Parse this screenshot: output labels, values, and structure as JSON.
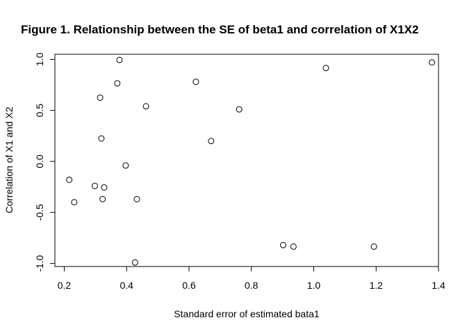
{
  "chart_data": {
    "type": "scatter",
    "title": "Figure 1. Relationship between the SE of beta1 and correlation of X1X2",
    "xlabel": "Standard error of estimated bata1",
    "ylabel": "Correlation of X1 and X2",
    "xlim": [
      0.17,
      1.4
    ],
    "ylim": [
      -1.03,
      1.05
    ],
    "x_ticks": [
      0.2,
      0.4,
      0.6,
      0.8,
      1.0,
      1.2,
      1.4
    ],
    "x_tick_labels": [
      "0.2",
      "0.4",
      "0.6",
      "0.8",
      "1.0",
      "1.2",
      "1.4"
    ],
    "y_ticks": [
      -1.0,
      -0.5,
      0.0,
      0.5,
      1.0
    ],
    "y_tick_labels": [
      "-1.0",
      "-0.5",
      "0.0",
      "0.5",
      "1.0"
    ],
    "grid": false,
    "legend": "none",
    "marker": "open-circle",
    "color": "#000000",
    "points": [
      {
        "x": 0.216,
        "y": -0.18
      },
      {
        "x": 0.232,
        "y": -0.4
      },
      {
        "x": 0.298,
        "y": -0.24
      },
      {
        "x": 0.315,
        "y": 0.625
      },
      {
        "x": 0.319,
        "y": 0.225
      },
      {
        "x": 0.323,
        "y": -0.37
      },
      {
        "x": 0.328,
        "y": -0.255
      },
      {
        "x": 0.37,
        "y": 0.765
      },
      {
        "x": 0.377,
        "y": 0.995
      },
      {
        "x": 0.397,
        "y": -0.04
      },
      {
        "x": 0.427,
        "y": -0.99
      },
      {
        "x": 0.433,
        "y": -0.37
      },
      {
        "x": 0.462,
        "y": 0.54
      },
      {
        "x": 0.622,
        "y": 0.78
      },
      {
        "x": 0.671,
        "y": 0.2
      },
      {
        "x": 0.761,
        "y": 0.51
      },
      {
        "x": 0.902,
        "y": -0.82
      },
      {
        "x": 0.935,
        "y": -0.835
      },
      {
        "x": 1.039,
        "y": 0.915
      },
      {
        "x": 1.193,
        "y": -0.835
      },
      {
        "x": 1.379,
        "y": 0.97
      }
    ]
  }
}
